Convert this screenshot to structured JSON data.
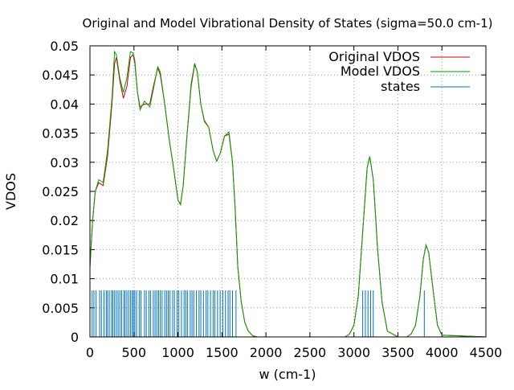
{
  "chart_data": {
    "type": "line",
    "title": "Original and Model Vibrational Density of States (sigma=50.0 cm-1)",
    "xlabel": "w (cm-1)",
    "ylabel": "VDOS",
    "xlim": [
      0,
      4500
    ],
    "ylim": [
      0,
      0.05
    ],
    "xticks": [
      0,
      500,
      1000,
      1500,
      2000,
      2500,
      3000,
      3500,
      4000,
      4500
    ],
    "xtick_labels": [
      "0",
      "500",
      "1000",
      "1500",
      "2000",
      "2500",
      "3000",
      "3500",
      "4000",
      "4500"
    ],
    "yticks": [
      0,
      0.005,
      0.01,
      0.015,
      0.02,
      0.025,
      0.03,
      0.035,
      0.04,
      0.045,
      0.05
    ],
    "ytick_labels": [
      "0",
      "0.005",
      "0.01",
      "0.015",
      "0.02",
      "0.025",
      "0.03",
      "0.035",
      "0.04",
      "0.045",
      "0.05"
    ],
    "grid": true,
    "legend_position": "top-right",
    "legend": [
      "Original VDOS",
      "Model VDOS",
      "states"
    ],
    "colors": {
      "original": "#cc0000",
      "model": "#00a000",
      "states": "#0072bd"
    },
    "series": [
      {
        "name": "Original VDOS",
        "x": [
          0,
          30,
          60,
          100,
          150,
          200,
          250,
          280,
          300,
          340,
          380,
          420,
          460,
          490,
          510,
          540,
          570,
          620,
          680,
          720,
          770,
          800,
          850,
          900,
          950,
          1000,
          1030,
          1060,
          1100,
          1150,
          1190,
          1220,
          1260,
          1300,
          1350,
          1400,
          1440,
          1480,
          1530,
          1580,
          1620,
          1650,
          1680,
          1720,
          1760,
          1800,
          1850,
          1900,
          2000,
          2500,
          2900,
          2950,
          3000,
          3050,
          3100,
          3150,
          3180,
          3220,
          3270,
          3320,
          3380,
          3500,
          3600,
          3650,
          3700,
          3750,
          3790,
          3820,
          3850,
          3900,
          3950,
          4000,
          4500
        ],
        "y": [
          0.012,
          0.02,
          0.025,
          0.0265,
          0.026,
          0.031,
          0.04,
          0.047,
          0.048,
          0.044,
          0.041,
          0.043,
          0.048,
          0.0485,
          0.047,
          0.042,
          0.0395,
          0.04,
          0.04,
          0.043,
          0.0462,
          0.045,
          0.04,
          0.034,
          0.029,
          0.0235,
          0.0228,
          0.026,
          0.034,
          0.043,
          0.0468,
          0.0455,
          0.04,
          0.0372,
          0.036,
          0.032,
          0.0302,
          0.0315,
          0.0345,
          0.0348,
          0.03,
          0.022,
          0.012,
          0.006,
          0.0025,
          0.001,
          0.0002,
          0,
          0,
          0,
          0,
          0.0005,
          0.002,
          0.007,
          0.018,
          0.029,
          0.031,
          0.027,
          0.015,
          0.006,
          0.001,
          0,
          0,
          0.0005,
          0.002,
          0.007,
          0.0135,
          0.0157,
          0.0145,
          0.008,
          0.002,
          0.0003,
          0
        ]
      },
      {
        "name": "Model VDOS",
        "x": [
          0,
          30,
          60,
          100,
          150,
          200,
          250,
          280,
          300,
          340,
          380,
          420,
          460,
          490,
          510,
          540,
          570,
          620,
          680,
          720,
          770,
          800,
          850,
          900,
          950,
          1000,
          1030,
          1060,
          1100,
          1150,
          1190,
          1220,
          1260,
          1300,
          1350,
          1400,
          1440,
          1480,
          1530,
          1580,
          1620,
          1650,
          1680,
          1720,
          1760,
          1800,
          1850,
          1900,
          2000,
          2500,
          2900,
          2950,
          3000,
          3050,
          3100,
          3150,
          3180,
          3220,
          3270,
          3320,
          3380,
          3500,
          3600,
          3650,
          3700,
          3750,
          3790,
          3820,
          3850,
          3900,
          3950,
          4000,
          4500
        ],
        "y": [
          0.012,
          0.02,
          0.025,
          0.027,
          0.0265,
          0.032,
          0.041,
          0.049,
          0.0485,
          0.0445,
          0.042,
          0.0445,
          0.049,
          0.0488,
          0.0475,
          0.042,
          0.039,
          0.0405,
          0.0395,
          0.0425,
          0.0464,
          0.0455,
          0.04,
          0.034,
          0.029,
          0.0235,
          0.0227,
          0.026,
          0.034,
          0.0435,
          0.047,
          0.0455,
          0.04,
          0.037,
          0.036,
          0.032,
          0.0302,
          0.0315,
          0.0345,
          0.0352,
          0.03,
          0.022,
          0.012,
          0.006,
          0.0025,
          0.001,
          0.0002,
          0,
          0,
          0,
          0,
          0.0005,
          0.002,
          0.007,
          0.018,
          0.029,
          0.031,
          0.027,
          0.015,
          0.006,
          0.001,
          0,
          0,
          0.0005,
          0.002,
          0.007,
          0.0135,
          0.0158,
          0.0145,
          0.008,
          0.002,
          0.0003,
          0
        ]
      },
      {
        "name": "states",
        "type": "impulses",
        "height": 0.008,
        "x": [
          25,
          45,
          70,
          110,
          130,
          160,
          185,
          200,
          220,
          245,
          260,
          280,
          300,
          320,
          340,
          360,
          385,
          400,
          420,
          440,
          460,
          480,
          495,
          510,
          530,
          560,
          580,
          620,
          640,
          670,
          690,
          720,
          740,
          760,
          780,
          800,
          820,
          850,
          870,
          890,
          910,
          940,
          960,
          990,
          1010,
          1040,
          1070,
          1090,
          1110,
          1140,
          1160,
          1180,
          1210,
          1240,
          1260,
          1290,
          1320,
          1340,
          1370,
          1400,
          1420,
          1450,
          1480,
          1510,
          1540,
          1570,
          1590,
          1620,
          1660,
          3100,
          3130,
          3160,
          3190,
          3220,
          3800
        ]
      }
    ]
  }
}
